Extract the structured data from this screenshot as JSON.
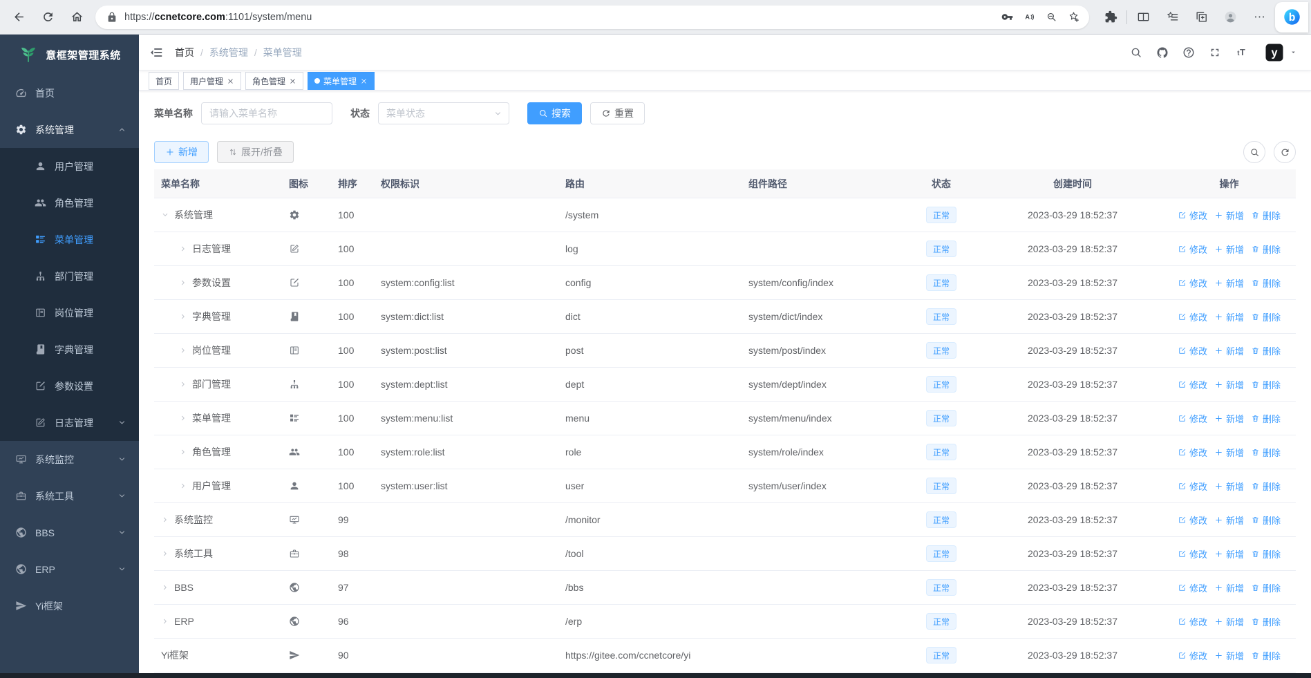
{
  "browser": {
    "url_prefix": "https://",
    "url_domain": "ccnetcore.com",
    "url_rest": ":1101/system/menu",
    "lock_icon": "lock-icon",
    "left_icons": [
      "back-icon",
      "reload-icon",
      "home-icon"
    ],
    "pill_icons": [
      "key-icon",
      "read-aloud-icon",
      "zoom-out-icon",
      "favorite-add-icon"
    ],
    "right_icons_a": [
      "extensions-icon"
    ],
    "right_icons_b": [
      "split-screen-icon",
      "favorites-icon",
      "collections-icon",
      "profile-icon",
      "more-icon"
    ],
    "bing_icon": "bing-icon"
  },
  "sidebar": {
    "logo_icon": "leaf-logo-icon",
    "title": "意框架管理系统",
    "items": [
      {
        "label": "首页",
        "icon": "dashboard-icon",
        "level": 1,
        "chevron": "none",
        "state": "normal"
      },
      {
        "label": "系统管理",
        "icon": "gear-icon",
        "level": 1,
        "chevron": "up",
        "state": "open"
      },
      {
        "label": "用户管理",
        "icon": "user-icon",
        "level": 2,
        "chevron": "none",
        "state": "normal"
      },
      {
        "label": "角色管理",
        "icon": "users-icon",
        "level": 2,
        "chevron": "none",
        "state": "normal"
      },
      {
        "label": "菜单管理",
        "icon": "menu-tree-icon",
        "level": 2,
        "chevron": "none",
        "state": "active"
      },
      {
        "label": "部门管理",
        "icon": "org-tree-icon",
        "level": 2,
        "chevron": "none",
        "state": "normal"
      },
      {
        "label": "岗位管理",
        "icon": "badge-icon",
        "level": 2,
        "chevron": "none",
        "state": "normal"
      },
      {
        "label": "字典管理",
        "icon": "book-icon",
        "level": 2,
        "chevron": "none",
        "state": "normal"
      },
      {
        "label": "参数设置",
        "icon": "edit-icon",
        "level": 2,
        "chevron": "none",
        "state": "normal"
      },
      {
        "label": "日志管理",
        "icon": "log-icon",
        "level": 2,
        "chevron": "down",
        "state": "normal"
      },
      {
        "label": "系统监控",
        "icon": "monitor-icon",
        "level": 1,
        "chevron": "down",
        "state": "normal"
      },
      {
        "label": "系统工具",
        "icon": "toolbox-icon",
        "level": 1,
        "chevron": "down",
        "state": "normal"
      },
      {
        "label": "BBS",
        "icon": "globe-icon",
        "level": 1,
        "chevron": "down",
        "state": "normal"
      },
      {
        "label": "ERP",
        "icon": "globe-icon",
        "level": 1,
        "chevron": "down",
        "state": "normal"
      },
      {
        "label": "Yi框架",
        "icon": "send-icon",
        "level": 1,
        "chevron": "none",
        "state": "normal"
      }
    ]
  },
  "navbar": {
    "collapse_icon": "hamburger-icon",
    "breadcrumb": {
      "separator": "/",
      "items": [
        "首页",
        "系统管理",
        "菜单管理"
      ]
    },
    "right_icons": [
      "search-icon",
      "github-icon",
      "help-icon",
      "fullscreen-icon",
      "font-size-icon"
    ],
    "avatar_icon": "yi-avatar-icon",
    "caret_icon": "caret-down-icon"
  },
  "tabs": [
    {
      "label": "首页",
      "closable": false,
      "active": false
    },
    {
      "label": "用户管理",
      "closable": true,
      "active": false
    },
    {
      "label": "角色管理",
      "closable": true,
      "active": false
    },
    {
      "label": "菜单管理",
      "closable": true,
      "active": true
    }
  ],
  "filters": {
    "name_label": "菜单名称",
    "name_placeholder": "请输入菜单名称",
    "status_label": "状态",
    "status_placeholder": "菜单状态",
    "select_chevron_icon": "chevron-down-icon",
    "search_label": "搜索",
    "search_icon": "search-icon",
    "reset_label": "重置",
    "reset_icon": "reload-icon"
  },
  "toolbar": {
    "add_label": "新增",
    "add_icon": "plus-icon",
    "toggle_label": "展开/折叠",
    "toggle_icon": "sort-toggle-icon",
    "search_icon": "search-icon",
    "refresh_icon": "reload-icon"
  },
  "table": {
    "columns": [
      "菜单名称",
      "图标",
      "排序",
      "权限标识",
      "路由",
      "组件路径",
      "状态",
      "创建时间",
      "操作"
    ],
    "actions": {
      "edit_label": "修改",
      "edit_icon": "edit-square-icon",
      "add_label": "新增",
      "add_icon": "plus-icon",
      "delete_label": "删除",
      "delete_icon": "trash-icon"
    },
    "rows": [
      {
        "name": "系统管理",
        "icon": "gear-icon",
        "sort": "100",
        "perms": "",
        "path": "/system",
        "component": "",
        "status": "正常",
        "created": "2023-03-29 18:52:37",
        "indent": 0,
        "expand": "down"
      },
      {
        "name": "日志管理",
        "icon": "log-icon",
        "sort": "100",
        "perms": "",
        "path": "log",
        "component": "",
        "status": "正常",
        "created": "2023-03-29 18:52:37",
        "indent": 1,
        "expand": "right"
      },
      {
        "name": "参数设置",
        "icon": "edit-icon",
        "sort": "100",
        "perms": "system:config:list",
        "path": "config",
        "component": "system/config/index",
        "status": "正常",
        "created": "2023-03-29 18:52:37",
        "indent": 1,
        "expand": "right"
      },
      {
        "name": "字典管理",
        "icon": "book-icon",
        "sort": "100",
        "perms": "system:dict:list",
        "path": "dict",
        "component": "system/dict/index",
        "status": "正常",
        "created": "2023-03-29 18:52:37",
        "indent": 1,
        "expand": "right"
      },
      {
        "name": "岗位管理",
        "icon": "badge-icon",
        "sort": "100",
        "perms": "system:post:list",
        "path": "post",
        "component": "system/post/index",
        "status": "正常",
        "created": "2023-03-29 18:52:37",
        "indent": 1,
        "expand": "right"
      },
      {
        "name": "部门管理",
        "icon": "org-tree-icon",
        "sort": "100",
        "perms": "system:dept:list",
        "path": "dept",
        "component": "system/dept/index",
        "status": "正常",
        "created": "2023-03-29 18:52:37",
        "indent": 1,
        "expand": "right"
      },
      {
        "name": "菜单管理",
        "icon": "menu-tree-icon",
        "sort": "100",
        "perms": "system:menu:list",
        "path": "menu",
        "component": "system/menu/index",
        "status": "正常",
        "created": "2023-03-29 18:52:37",
        "indent": 1,
        "expand": "right"
      },
      {
        "name": "角色管理",
        "icon": "users-icon",
        "sort": "100",
        "perms": "system:role:list",
        "path": "role",
        "component": "system/role/index",
        "status": "正常",
        "created": "2023-03-29 18:52:37",
        "indent": 1,
        "expand": "right"
      },
      {
        "name": "用户管理",
        "icon": "user-icon",
        "sort": "100",
        "perms": "system:user:list",
        "path": "user",
        "component": "system/user/index",
        "status": "正常",
        "created": "2023-03-29 18:52:37",
        "indent": 1,
        "expand": "right"
      },
      {
        "name": "系统监控",
        "icon": "monitor-icon",
        "sort": "99",
        "perms": "",
        "path": "/monitor",
        "component": "",
        "status": "正常",
        "created": "2023-03-29 18:52:37",
        "indent": 0,
        "expand": "right"
      },
      {
        "name": "系统工具",
        "icon": "toolbox-icon",
        "sort": "98",
        "perms": "",
        "path": "/tool",
        "component": "",
        "status": "正常",
        "created": "2023-03-29 18:52:37",
        "indent": 0,
        "expand": "right"
      },
      {
        "name": "BBS",
        "icon": "globe-icon",
        "sort": "97",
        "perms": "",
        "path": "/bbs",
        "component": "",
        "status": "正常",
        "created": "2023-03-29 18:52:37",
        "indent": 0,
        "expand": "right"
      },
      {
        "name": "ERP",
        "icon": "globe-icon",
        "sort": "96",
        "perms": "",
        "path": "/erp",
        "component": "",
        "status": "正常",
        "created": "2023-03-29 18:52:37",
        "indent": 0,
        "expand": "right"
      },
      {
        "name": "Yi框架",
        "icon": "send-icon",
        "sort": "90",
        "perms": "",
        "path": "https://gitee.com/ccnetcore/yi",
        "component": "",
        "status": "正常",
        "created": "2023-03-29 18:52:37",
        "indent": 0,
        "expand": "none"
      }
    ]
  },
  "colors": {
    "accent": "#409eff",
    "sidebar_bg": "#304156",
    "submenu_bg": "#1f2d3d",
    "logo_green": "#42b983",
    "badge_bg": "#ecf5ff",
    "badge_border": "#d9ecff"
  }
}
